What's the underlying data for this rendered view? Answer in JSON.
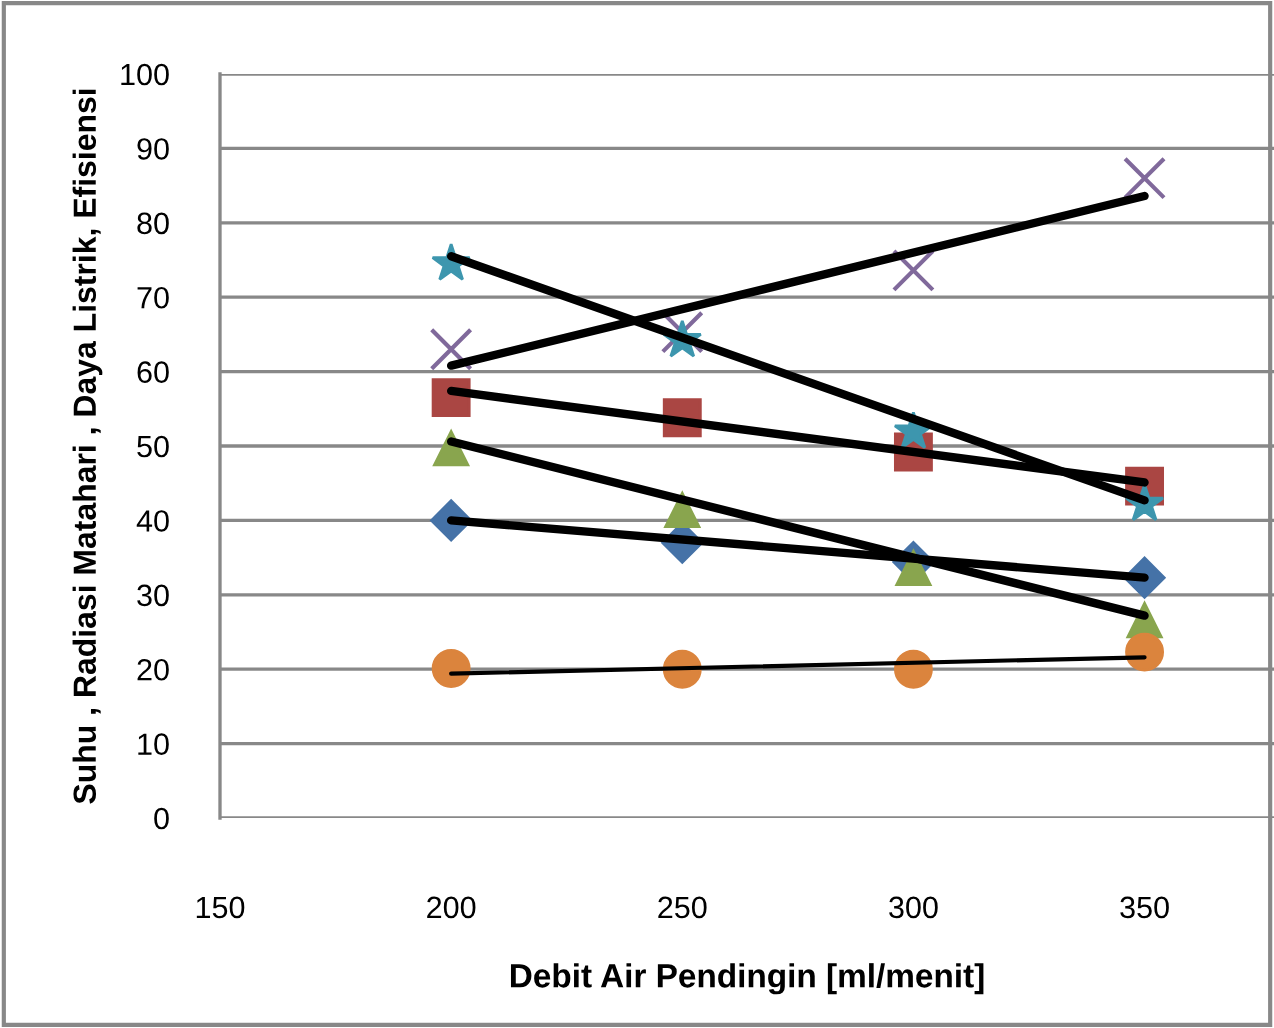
{
  "chart_data": {
    "type": "scatter",
    "xlabel": "Debit Air Pendingin [ml/menit]",
    "ylabel": "Suhu , Radiasi Matahari , Daya Listrik, Efisiensi",
    "xlim": [
      150,
      378
    ],
    "xticks": [
      150,
      200,
      250,
      300,
      350
    ],
    "ylim": [
      0,
      100
    ],
    "yticks": [
      0,
      10,
      20,
      30,
      40,
      50,
      60,
      70,
      80,
      90,
      100
    ],
    "grid": "y",
    "legend": false,
    "series": [
      {
        "marker": "diamond",
        "color": "#4572a7",
        "x": [
          200,
          250,
          300,
          350
        ],
        "values": [
          40,
          37,
          34.4,
          32.3
        ]
      },
      {
        "marker": "square",
        "color": "#aa4643",
        "x": [
          200,
          250,
          300,
          350
        ],
        "values": [
          56.5,
          53.8,
          49.2,
          44.6
        ]
      },
      {
        "marker": "triangle",
        "color": "#89a54e",
        "x": [
          200,
          250,
          300,
          350
        ],
        "values": [
          49.7,
          41.4,
          33.6,
          26.6
        ]
      },
      {
        "marker": "circle",
        "color": "#db843d",
        "x": [
          200,
          250,
          300,
          350
        ],
        "values": [
          20.1,
          20,
          20,
          22.3
        ]
      },
      {
        "marker": "cross",
        "color": "#80699b",
        "x": [
          200,
          250,
          300,
          350
        ],
        "values": [
          63,
          65.3,
          73.6,
          86
        ]
      },
      {
        "marker": "star",
        "color": "#3d96ae",
        "x": [
          200,
          250,
          300,
          350
        ],
        "values": [
          74.5,
          64.2,
          51.9,
          42.2
        ]
      },
      {
        "type": "line",
        "marker": "none",
        "line_style": "solid",
        "color": "#000000",
        "x": [
          200,
          350
        ],
        "values": [
          40,
          32.3
        ]
      },
      {
        "type": "line",
        "marker": "none",
        "line_style": "solid",
        "color": "#000000",
        "x": [
          200,
          350
        ],
        "values": [
          57.4,
          45.1
        ]
      },
      {
        "type": "line",
        "marker": "none",
        "line_style": "solid",
        "color": "#000000",
        "x": [
          200,
          350
        ],
        "values": [
          50.6,
          27.2
        ]
      },
      {
        "type": "line",
        "marker": "none",
        "line_style": "solid",
        "color": "#000000",
        "x": [
          200,
          350
        ],
        "values": [
          19.4,
          21.6
        ]
      },
      {
        "type": "line",
        "marker": "none",
        "line_style": "solid",
        "color": "#000000",
        "x": [
          200,
          350
        ],
        "values": [
          60.8,
          83.6
        ]
      },
      {
        "type": "line",
        "marker": "none",
        "line_style": "solid",
        "color": "#000000",
        "x": [
          200,
          350
        ],
        "values": [
          75.5,
          42.7
        ]
      }
    ]
  }
}
